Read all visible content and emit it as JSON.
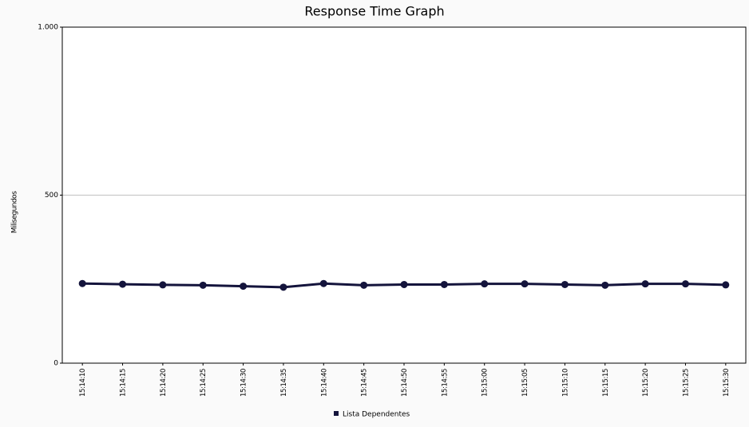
{
  "chart_data": {
    "type": "line",
    "title": "Response Time Graph",
    "y_label": "Milisegundos",
    "categories": [
      "15:14:10",
      "15:14:15",
      "15:14:20",
      "15:14:25",
      "15:14:30",
      "15:14:35",
      "15:14:40",
      "15:14:45",
      "15:14:50",
      "15:14:55",
      "15:15:00",
      "15:15:05",
      "15:15:10",
      "15:15:15",
      "15:15:20",
      "15:15:25",
      "15:15:30"
    ],
    "series": [
      {
        "name": "Lista Dependentes",
        "color": "#14143c",
        "values": [
          237,
          235,
          233,
          232,
          229,
          226,
          237,
          232,
          234,
          234,
          236,
          236,
          234,
          232,
          236,
          236,
          233
        ]
      }
    ],
    "ylim": [
      0,
      1000
    ],
    "yticks": [
      0,
      500,
      {
        "value": 1000,
        "label": "1.000"
      }
    ],
    "grid": true
  }
}
